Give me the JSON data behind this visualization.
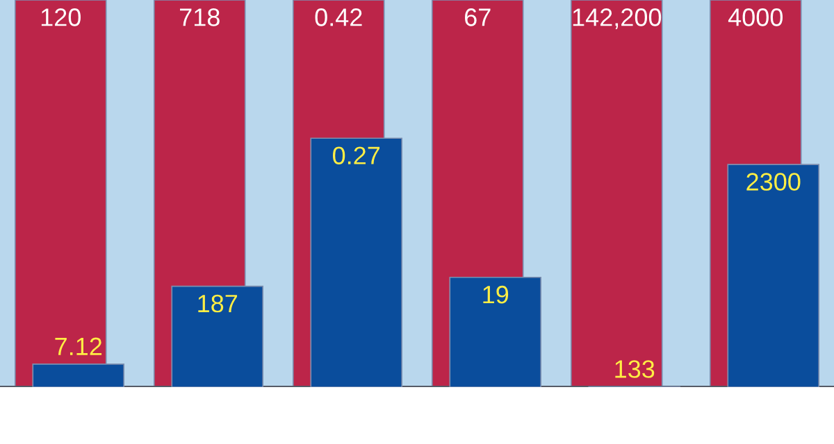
{
  "chart_data": [
    {
      "type": "bar",
      "categories": [
        null
      ],
      "data_labels": true,
      "series": [
        {
          "color": "#bc2549",
          "values": [
            120
          ]
        },
        {
          "color": "#0a4d9c",
          "values": [
            7.12
          ]
        }
      ]
    },
    {
      "type": "bar",
      "categories": [
        null
      ],
      "data_labels": true,
      "series": [
        {
          "color": "#bc2549",
          "values": [
            718
          ]
        },
        {
          "color": "#0a4d9c",
          "values": [
            187
          ]
        }
      ]
    },
    {
      "type": "bar",
      "categories": [
        null
      ],
      "data_labels": true,
      "series": [
        {
          "color": "#bc2549",
          "values": [
            0.42
          ]
        },
        {
          "color": "#0a4d9c",
          "values": [
            0.27
          ]
        }
      ]
    },
    {
      "type": "bar",
      "categories": [
        null
      ],
      "data_labels": true,
      "series": [
        {
          "color": "#bc2549",
          "values": [
            67
          ]
        },
        {
          "color": "#0a4d9c",
          "values": [
            19
          ]
        }
      ]
    },
    {
      "type": "bar",
      "categories": [
        null
      ],
      "data_labels": true,
      "series": [
        {
          "color": "#bc2549",
          "values": [
            142200
          ],
          "value_labels": [
            "142,200"
          ]
        },
        {
          "color": "#0a4d9c",
          "values": [
            133
          ]
        }
      ]
    },
    {
      "type": "bar",
      "categories": [
        null
      ],
      "data_labels": true,
      "series": [
        {
          "color": "#bc2549",
          "values": [
            4000
          ]
        },
        {
          "color": "#0a4d9c",
          "values": [
            2300
          ]
        }
      ]
    }
  ]
}
